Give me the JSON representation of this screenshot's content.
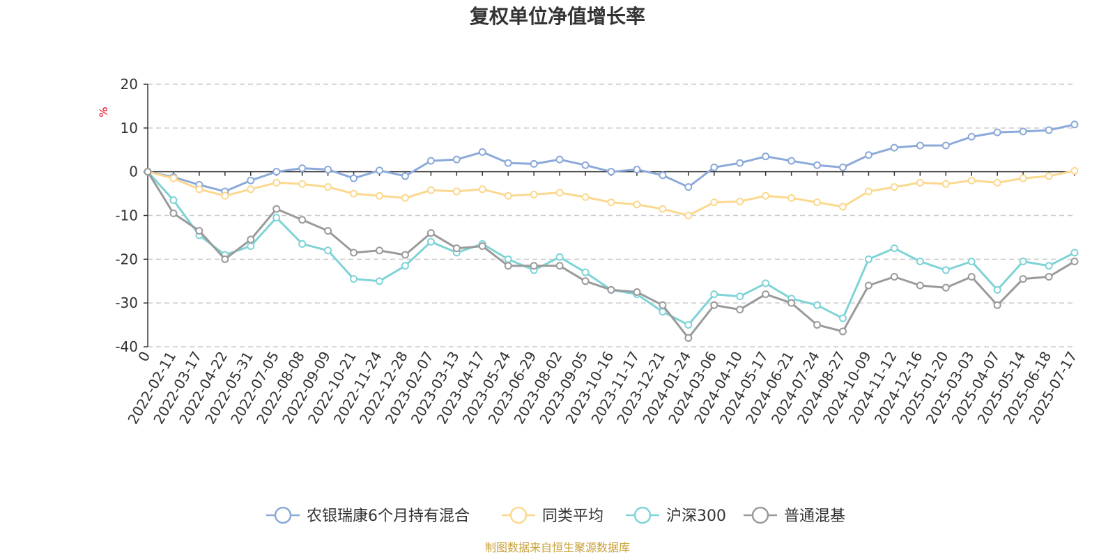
{
  "chart_data": {
    "type": "line",
    "title": "复权单位净值增长率",
    "ylabel": "%",
    "ylim": [
      -40,
      20
    ],
    "yticks": [
      20,
      10,
      0,
      -10,
      -20,
      -30,
      -40
    ],
    "grid": true,
    "legend_position": "bottom",
    "x_labels": [
      "0",
      "2022-02-11",
      "2022-03-17",
      "2022-04-22",
      "2022-05-31",
      "2022-07-05",
      "2022-08-08",
      "2022-09-09",
      "2022-10-21",
      "2022-11-24",
      "2022-12-28",
      "2023-02-07",
      "2023-03-13",
      "2023-04-17",
      "2023-05-24",
      "2023-06-29",
      "2023-08-02",
      "2023-09-05",
      "2023-10-16",
      "2023-11-17",
      "2023-12-21",
      "2024-01-24",
      "2024-03-06",
      "2024-04-10",
      "2024-05-17",
      "2024-06-21",
      "2024-07-24",
      "2024-08-27",
      "2024-10-09",
      "2024-11-12",
      "2024-12-16",
      "2025-01-20",
      "2025-03-03",
      "2025-04-07",
      "2025-05-14",
      "2025-06-18",
      "2025-07-17"
    ],
    "series": [
      {
        "name": "农银瑞康6个月持有混合",
        "color": "#8ba9d9",
        "values": [
          0,
          -1.2,
          -3.0,
          -4.5,
          -2.0,
          0.0,
          0.8,
          0.5,
          -1.5,
          0.3,
          -1.0,
          2.5,
          2.8,
          4.5,
          2.0,
          1.8,
          2.8,
          1.5,
          0.0,
          0.5,
          -0.8,
          -3.5,
          1.0,
          2.0,
          3.5,
          2.5,
          1.5,
          1.0,
          3.8,
          5.5,
          6.0,
          6.0,
          8.0,
          9.0,
          9.2,
          9.5,
          10.8
        ]
      },
      {
        "name": "同类平均",
        "color": "#fbd88e",
        "values": [
          0,
          -1.5,
          -4.0,
          -5.5,
          -4.0,
          -2.5,
          -2.8,
          -3.5,
          -5.0,
          -5.5,
          -6.0,
          -4.2,
          -4.5,
          -4.0,
          -5.5,
          -5.2,
          -4.8,
          -5.8,
          -7.0,
          -7.5,
          -8.5,
          -10.0,
          -7.0,
          -6.8,
          -5.5,
          -6.0,
          -7.0,
          -8.0,
          -4.5,
          -3.5,
          -2.5,
          -2.8,
          -2.0,
          -2.5,
          -1.5,
          -1.0,
          0.2
        ]
      },
      {
        "name": "沪深300",
        "color": "#7fd3d6",
        "values": [
          0,
          -6.5,
          -14.5,
          -19.0,
          -17.0,
          -10.5,
          -16.5,
          -18.0,
          -24.5,
          -25.0,
          -21.5,
          -16.0,
          -18.5,
          -16.5,
          -20.0,
          -22.5,
          -19.5,
          -23.0,
          -27.0,
          -28.0,
          -32.0,
          -35.0,
          -28.0,
          -28.5,
          -25.5,
          -29.0,
          -30.5,
          -33.5,
          -20.0,
          -17.5,
          -20.5,
          -22.5,
          -20.5,
          -27.0,
          -20.5,
          -21.5,
          -18.5
        ]
      },
      {
        "name": "普通混基",
        "color": "#9a9a9a",
        "values": [
          0,
          -9.5,
          -13.5,
          -20.0,
          -15.5,
          -8.5,
          -11.0,
          -13.5,
          -18.5,
          -18.0,
          -19.0,
          -14.0,
          -17.5,
          -17.0,
          -21.5,
          -21.5,
          -21.5,
          -25.0,
          -27.0,
          -27.5,
          -30.5,
          -38.0,
          -30.5,
          -31.5,
          -28.0,
          -30.0,
          -35.0,
          -36.5,
          -26.0,
          -24.0,
          -26.0,
          -26.5,
          -24.0,
          -30.5,
          -24.5,
          -24.0,
          -20.5
        ]
      }
    ]
  },
  "source_text": "制图数据来自恒生聚源数据库"
}
